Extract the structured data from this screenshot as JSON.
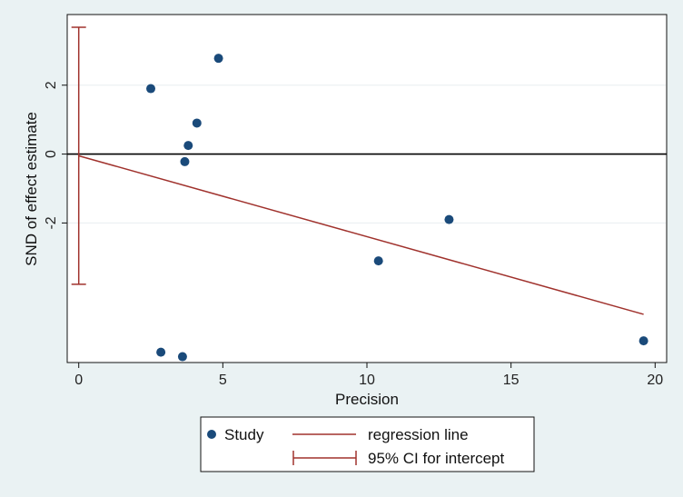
{
  "chart_data": {
    "type": "scatter",
    "xlabel": "Precision",
    "ylabel": "SND of effect estimate",
    "xlim": [
      -0.4,
      20.4
    ],
    "ylim": [
      -6.05,
      4.05
    ],
    "xticks": [
      0,
      5,
      10,
      15,
      20
    ],
    "yticks": [
      -2,
      0,
      2
    ],
    "ytick_labels": [
      "-2",
      "0",
      "2"
    ],
    "grid": true,
    "series": [
      {
        "name": "Study",
        "points": [
          {
            "x": 2.5,
            "y": 1.9
          },
          {
            "x": 4.85,
            "y": 2.78
          },
          {
            "x": 4.1,
            "y": 0.9
          },
          {
            "x": 3.8,
            "y": 0.25
          },
          {
            "x": 3.68,
            "y": -0.22
          },
          {
            "x": 12.85,
            "y": -1.9
          },
          {
            "x": 10.4,
            "y": -3.1
          },
          {
            "x": 2.85,
            "y": -5.75
          },
          {
            "x": 3.6,
            "y": -5.88
          },
          {
            "x": 19.6,
            "y": -5.42
          }
        ],
        "color": "#1a4a7a"
      }
    ],
    "regression_line": {
      "name": "regression line",
      "x": [
        0,
        19.6
      ],
      "y": [
        -0.05,
        -4.65
      ],
      "color": "#a0322d"
    },
    "intercept_ci": {
      "name": "95% CI for intercept",
      "x": 0,
      "low": -3.78,
      "high": 3.68,
      "color": "#a0322d"
    },
    "legend": {
      "placement": "bottom",
      "entries": [
        "Study",
        "regression line",
        "95% CI for intercept"
      ]
    }
  }
}
